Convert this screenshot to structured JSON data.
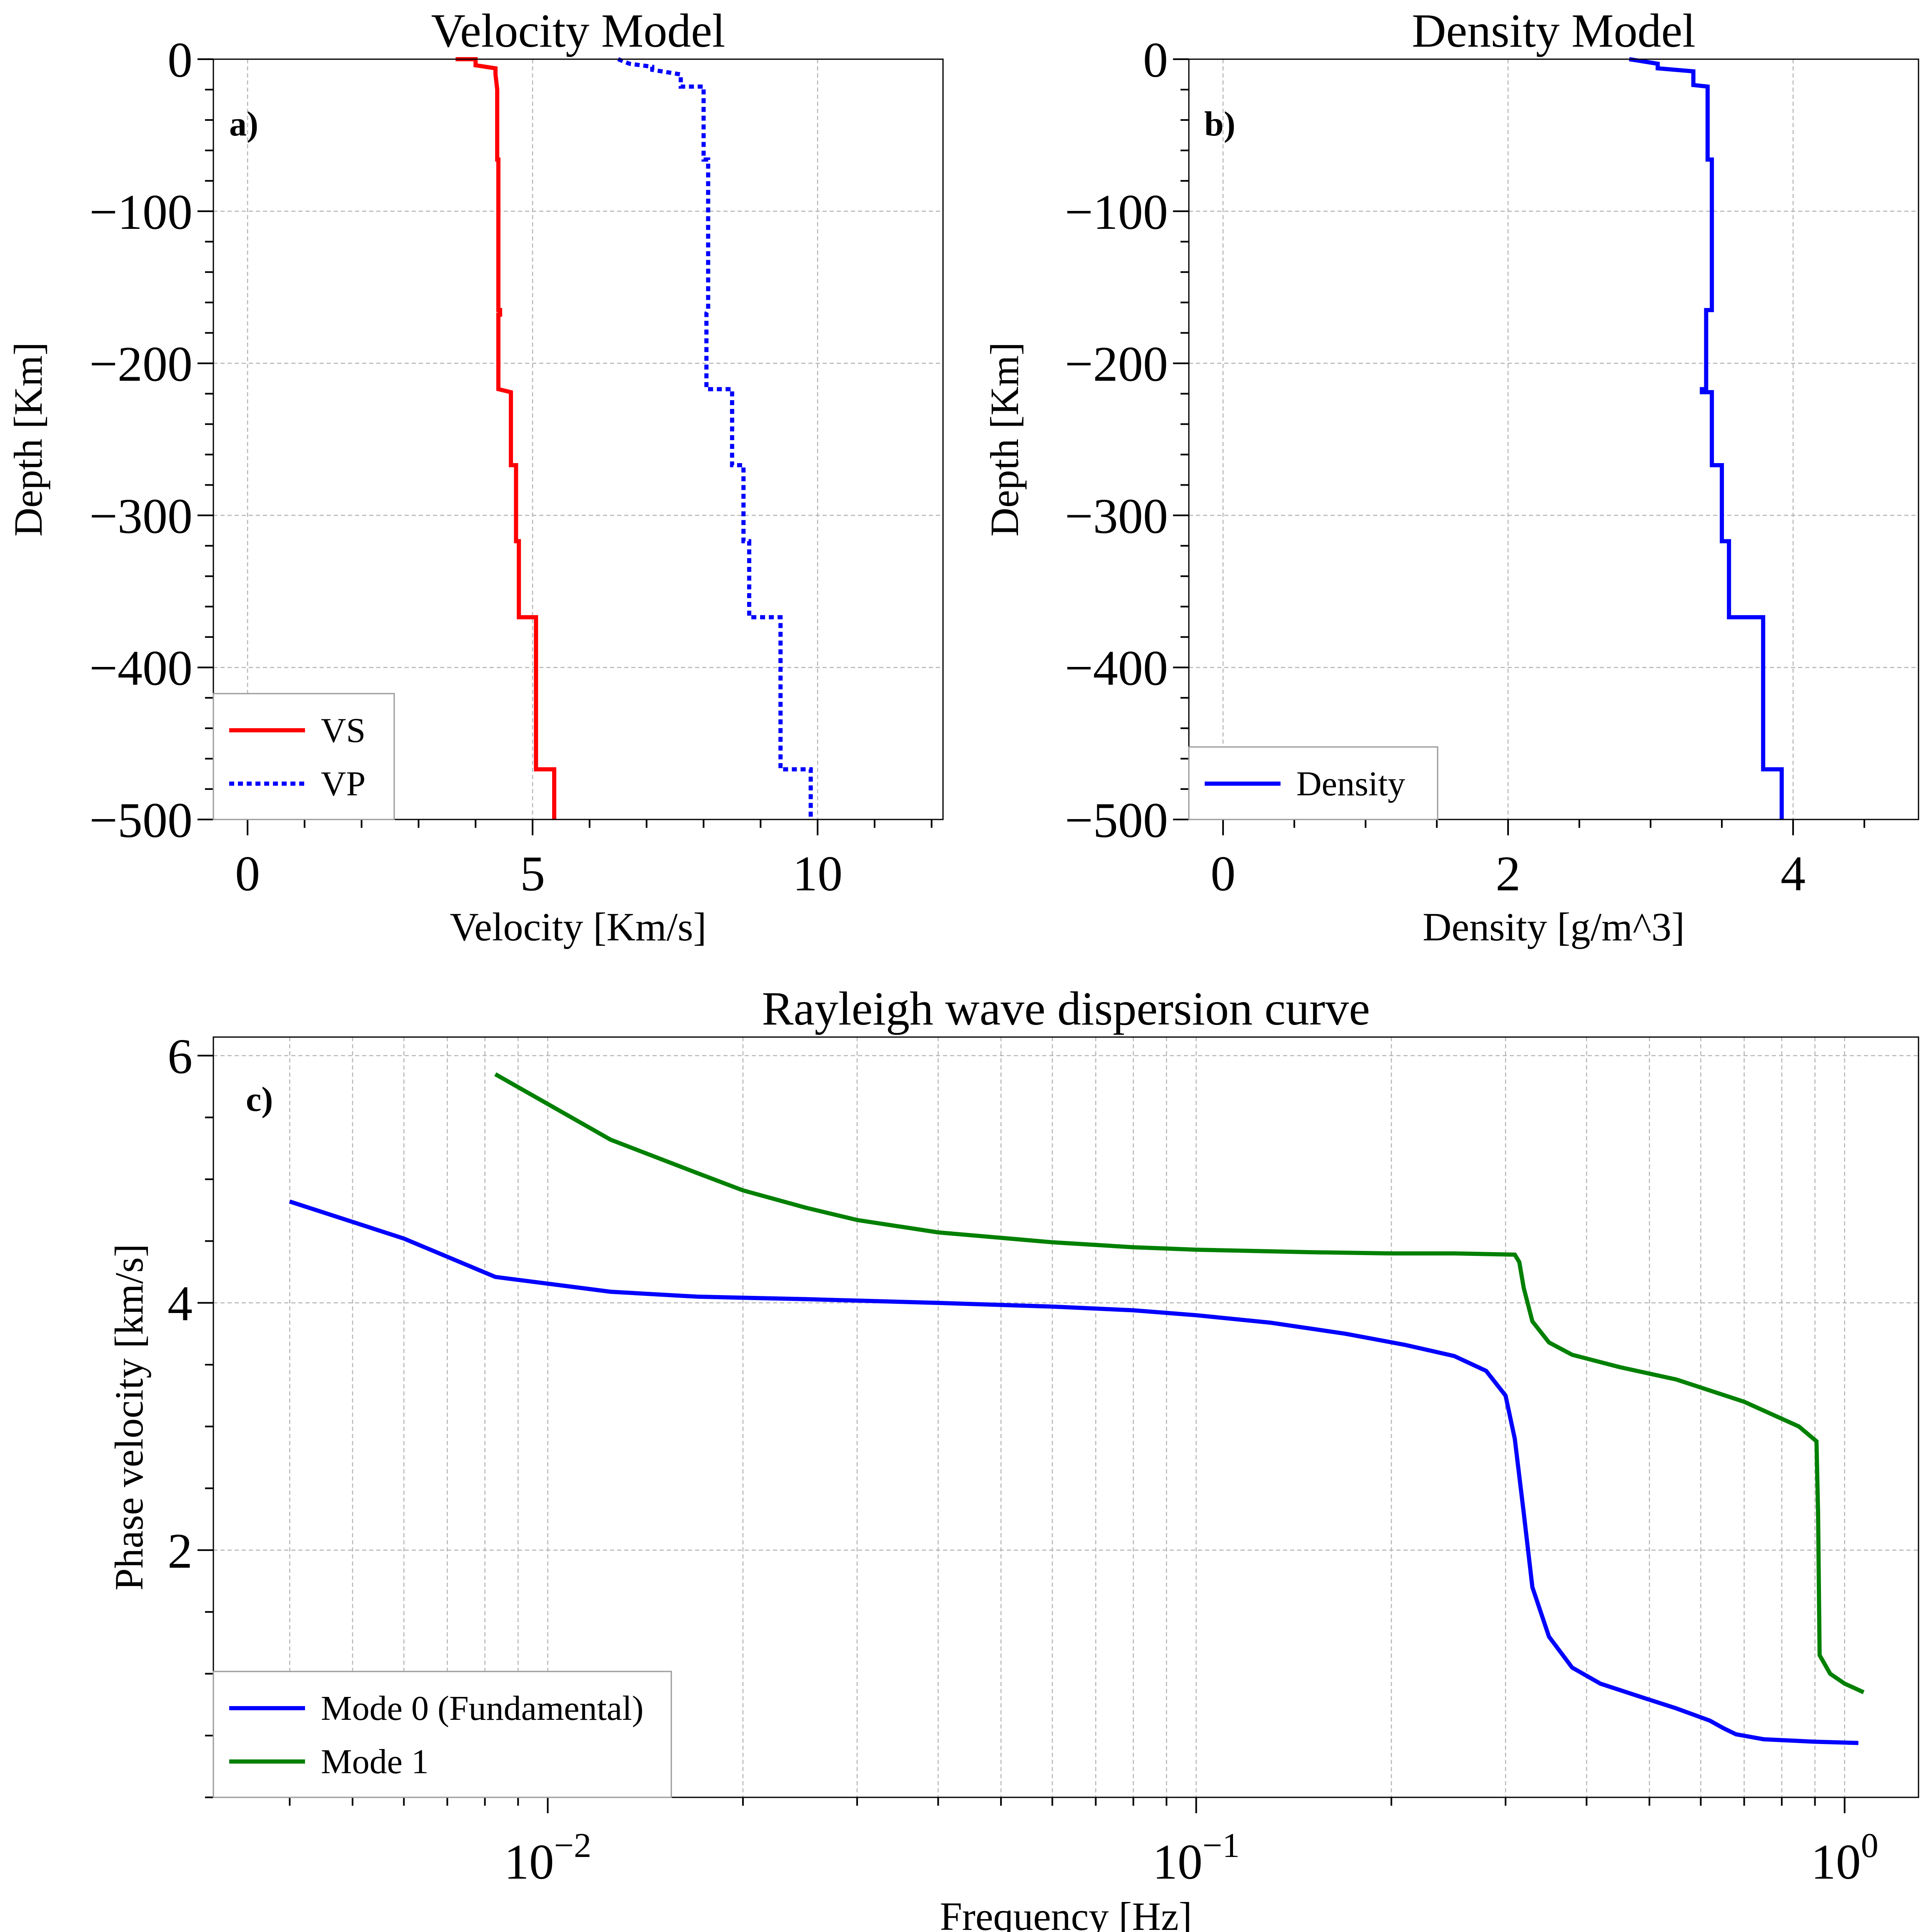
{
  "chart_data": [
    {
      "type": "line",
      "panel_label": "a)",
      "title": "Velocity Model",
      "xlabel": "Velocity [Km/s]",
      "ylabel": "Depth [Km]",
      "xlim": [
        -0.6,
        12.2
      ],
      "ylim": [
        -500,
        0
      ],
      "xticks": [
        0,
        5,
        10
      ],
      "xtick_labels": [
        "0",
        "5",
        "10"
      ],
      "yticks": [
        0,
        -100,
        -200,
        -300,
        -400,
        -500
      ],
      "ytick_labels": [
        "0",
        "−100",
        "−200",
        "−300",
        "−400",
        "−500"
      ],
      "grid": true,
      "legend_position": "lower-left",
      "series": [
        {
          "name": "VS",
          "color": "#ff0000",
          "style": "solid",
          "x": [
            3.65,
            4.0,
            4.0,
            4.35,
            4.35,
            4.38,
            4.38,
            4.4,
            4.4,
            4.43,
            4.43,
            4.4,
            4.4,
            4.62,
            4.62,
            4.71,
            4.71,
            4.76,
            4.76,
            5.06,
            5.06,
            5.38,
            5.38
          ],
          "y": [
            0,
            0,
            -4,
            -6,
            -10,
            -20,
            -66,
            -66,
            -165,
            -165,
            -168,
            -168,
            -217,
            -219,
            -267,
            -267,
            -317,
            -317,
            -367,
            -367,
            -467,
            -467,
            -500
          ]
        },
        {
          "name": "VP",
          "color": "#0000ff",
          "style": "dotted",
          "x": [
            6.5,
            6.7,
            7.1,
            7.1,
            7.6,
            7.6,
            8.0,
            8.0,
            8.08,
            8.08,
            8.05,
            8.05,
            8.5,
            8.5,
            8.7,
            8.7,
            8.8,
            8.8,
            9.35,
            9.35,
            9.88,
            9.88
          ],
          "y": [
            0,
            -3,
            -5,
            -7,
            -10,
            -18,
            -18,
            -66,
            -66,
            -165,
            -167,
            -217,
            -217,
            -267,
            -267,
            -317,
            -317,
            -367,
            -367,
            -467,
            -467,
            -500
          ]
        }
      ]
    },
    {
      "type": "line",
      "panel_label": "b)",
      "title": "Density Model",
      "xlabel": "Density [g/m^3]",
      "ylabel": "Depth [Km]",
      "xlim": [
        -0.24,
        4.88
      ],
      "ylim": [
        -500,
        0
      ],
      "xticks": [
        0,
        2,
        4
      ],
      "xtick_labels": [
        "0",
        "2",
        "4"
      ],
      "yticks": [
        0,
        -100,
        -200,
        -300,
        -400,
        -500
      ],
      "ytick_labels": [
        "0",
        "−100",
        "−200",
        "−300",
        "−400",
        "−500"
      ],
      "grid": true,
      "legend_position": "lower-left",
      "series": [
        {
          "name": "Density",
          "color": "#0000ff",
          "style": "solid",
          "x": [
            2.85,
            3.05,
            3.05,
            3.3,
            3.3,
            3.4,
            3.4,
            3.43,
            3.43,
            3.39,
            3.39,
            3.36,
            3.36,
            3.43,
            3.43,
            3.5,
            3.5,
            3.55,
            3.55,
            3.79,
            3.79,
            3.92,
            3.92
          ],
          "y": [
            0,
            -3,
            -6,
            -8,
            -17,
            -18,
            -66,
            -66,
            -165,
            -165,
            -217,
            -217,
            -219,
            -219,
            -267,
            -267,
            -317,
            -317,
            -367,
            -367,
            -467,
            -467,
            -500
          ]
        }
      ]
    },
    {
      "type": "line",
      "panel_label": "c)",
      "title": "Rayleigh wave dispersion curve",
      "xlabel": "Frequency [Hz]",
      "ylabel": "Phase velocity [km/s]",
      "xscale": "log",
      "xlim": [
        0.00305,
        1.3
      ],
      "ylim": [
        0.0,
        6.15
      ],
      "xticks": [
        0.01,
        0.1,
        1
      ],
      "xtick_label_base": "10",
      "xtick_label_exponents": [
        "−2",
        "−1",
        "0"
      ],
      "yticks": [
        2,
        4,
        6
      ],
      "ytick_labels": [
        "2",
        "4",
        "6"
      ],
      "grid": true,
      "legend_position": "lower-left",
      "series": [
        {
          "name": "Mode 0 (Fundamental)",
          "color": "#0000ff",
          "style": "solid",
          "x": [
            0.004,
            0.006,
            0.0083,
            0.0125,
            0.017,
            0.025,
            0.04,
            0.06,
            0.08,
            0.1,
            0.13,
            0.17,
            0.21,
            0.25,
            0.28,
            0.3,
            0.31,
            0.32,
            0.33,
            0.35,
            0.38,
            0.42,
            0.48,
            0.55,
            0.62,
            0.65,
            0.68,
            0.75,
            0.9,
            1.05
          ],
          "y": [
            4.82,
            4.52,
            4.21,
            4.09,
            4.05,
            4.03,
            4.0,
            3.97,
            3.94,
            3.9,
            3.84,
            3.75,
            3.66,
            3.57,
            3.45,
            3.25,
            2.9,
            2.3,
            1.7,
            1.3,
            1.05,
            0.92,
            0.82,
            0.72,
            0.62,
            0.56,
            0.51,
            0.47,
            0.45,
            0.44
          ]
        },
        {
          "name": "Mode 1",
          "color": "#008000",
          "style": "solid",
          "x": [
            0.0083,
            0.0125,
            0.017,
            0.02,
            0.025,
            0.03,
            0.04,
            0.06,
            0.08,
            0.1,
            0.15,
            0.2,
            0.25,
            0.31,
            0.315,
            0.32,
            0.33,
            0.35,
            0.38,
            0.45,
            0.55,
            0.7,
            0.85,
            0.905,
            0.91,
            0.915,
            0.95,
            1.0,
            1.07
          ],
          "y": [
            5.85,
            5.32,
            5.05,
            4.91,
            4.77,
            4.67,
            4.57,
            4.49,
            4.45,
            4.43,
            4.41,
            4.4,
            4.4,
            4.39,
            4.33,
            4.12,
            3.85,
            3.68,
            3.58,
            3.48,
            3.38,
            3.2,
            3.0,
            2.88,
            2.3,
            1.15,
            1.0,
            0.92,
            0.85
          ]
        }
      ]
    }
  ]
}
